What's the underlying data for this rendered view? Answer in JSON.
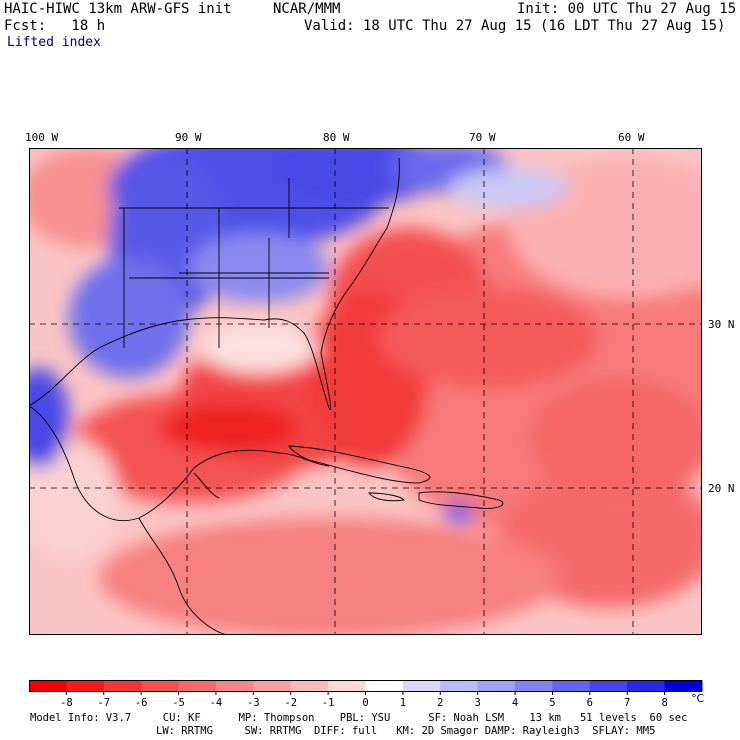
{
  "header": {
    "title_left": "HAIC-HIWC 13km ARW-GFS init",
    "org": "NCAR/MMM",
    "init": "Init: 00 UTC Thu 27 Aug 15",
    "fcst": "Fcst:   18 h",
    "valid": "Valid: 18 UTC Thu 27 Aug 15 (16 LDT Thu 27 Aug 15)",
    "field": "Lifted index"
  },
  "map": {
    "lon_labels": [
      "100 W",
      "90 W",
      "80 W",
      "70 W",
      "60 W"
    ],
    "lat_labels": [
      "30 N",
      "20 N"
    ],
    "colors": {
      "deep_red": "#f01010",
      "red": "#f54545",
      "mid_red": "#f77070",
      "light_red": "#fa9a9a",
      "pale_red": "#fcd0d0",
      "blue": "#4646e6",
      "deep_blue": "#1c1cd8",
      "light_blue": "#9a9af0",
      "pale_blue": "#d0d0fa"
    }
  },
  "colorbar": {
    "ticks": [
      "-8",
      "-7",
      "-6",
      "-5",
      "-4",
      "-3",
      "-2",
      "-1",
      "0",
      "1",
      "2",
      "3",
      "4",
      "5",
      "6",
      "7",
      "8"
    ],
    "unit": "°C",
    "colors": [
      "#f00000",
      "#f51a1a",
      "#f53535",
      "#f55050",
      "#f56a6a",
      "#f78585",
      "#f9a0a0",
      "#fbbbbb",
      "#fdd8d8",
      "#ffffff",
      "#d8d8fd",
      "#bbbbfb",
      "#9f9ff7",
      "#8282f3",
      "#6464ef",
      "#4646eb",
      "#2828e5",
      "#0000dd"
    ]
  },
  "model_info": {
    "line1": "Model Info: V3.7     CU: KF      MP: Thompson    PBL: YSU      SF: Noah LSM    13 km   51 levels  60 sec",
    "line2": "LW: RRTMG     SW: RRTMG  DIFF: full   KM: 2D Smagor DAMP: Rayleigh3  SFLAY: MM5"
  }
}
